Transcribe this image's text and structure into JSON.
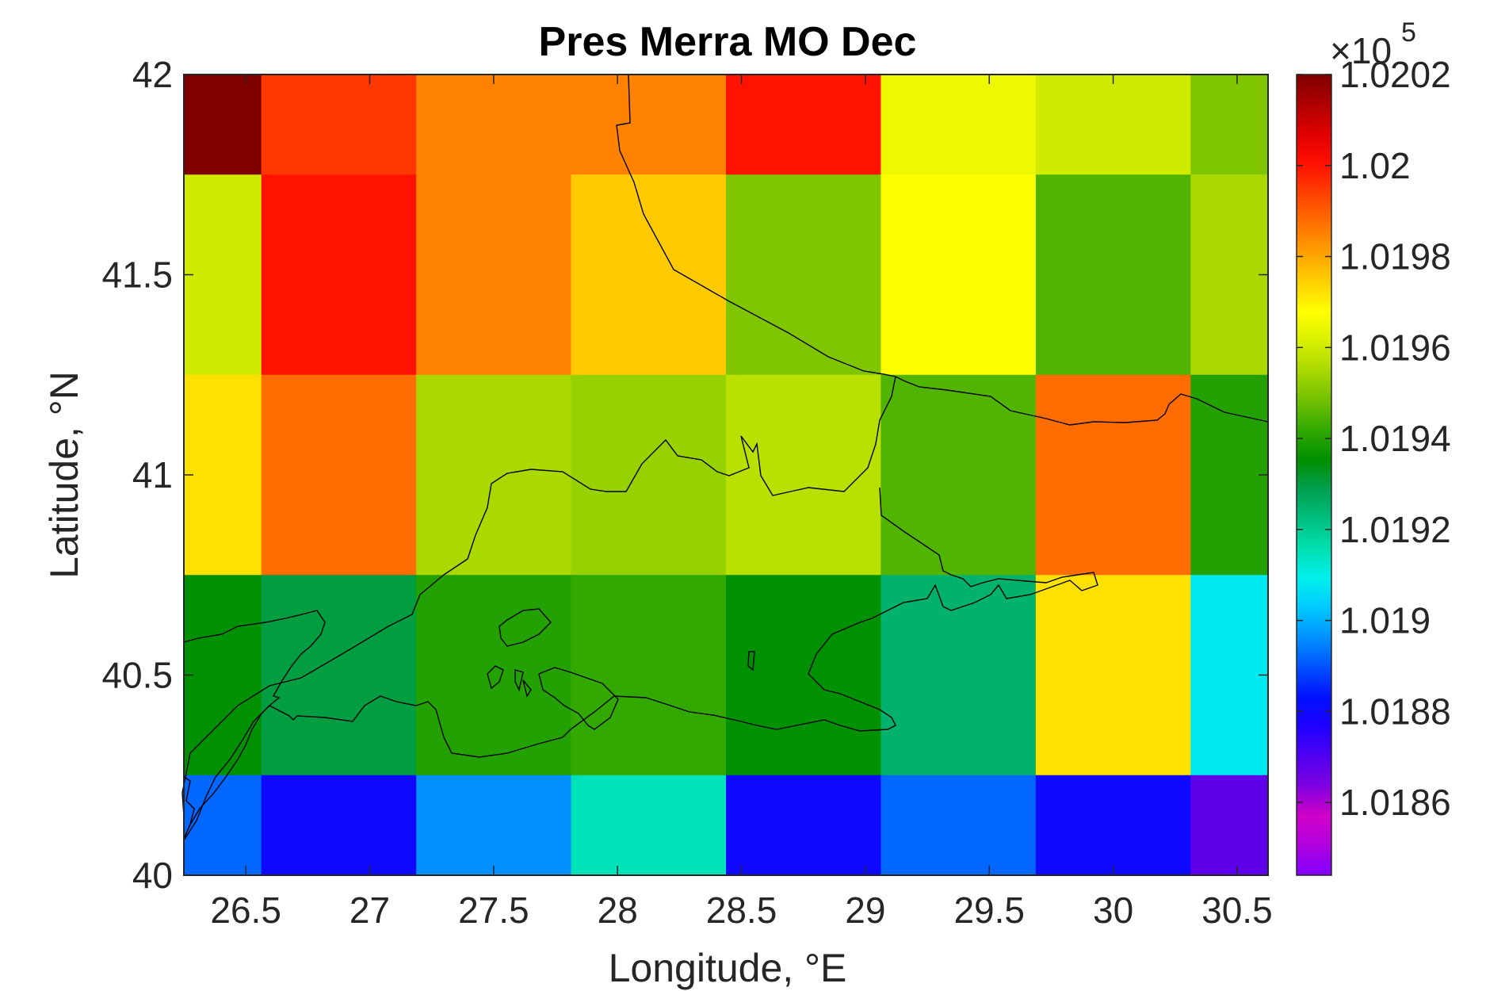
{
  "chart_data": {
    "type": "heatmap",
    "title": "Pres Merra MO Dec",
    "xlabel": "Longitude, °E",
    "ylabel": "Latitude, °N",
    "xlim": [
      26.25,
      30.625
    ],
    "ylim": [
      40,
      42
    ],
    "xticks": [
      26.5,
      27,
      27.5,
      28,
      28.5,
      29,
      29.5,
      30,
      30.5
    ],
    "xtick_labels": [
      "26.5",
      "27",
      "27.5",
      "28",
      "28.5",
      "29",
      "29.5",
      "30",
      "30.5"
    ],
    "yticks": [
      40,
      40.5,
      41,
      41.5,
      42
    ],
    "ytick_labels": [
      "40",
      "40.5",
      "41",
      "41.5",
      "42"
    ],
    "x_cell_edges": [
      26.25,
      26.5625,
      27.1875,
      27.8125,
      28.4375,
      29.0625,
      29.6875,
      30.3125,
      30.625
    ],
    "y_cell_edges": [
      42,
      41.75,
      41.25,
      40.75,
      40.25,
      40
    ],
    "z_multiplier_label": "×10",
    "z_multiplier_exponent": "5",
    "values": [
      [
        1.0202,
        1.01995,
        1.01985,
        1.01985,
        1.02,
        1.01965,
        1.0196,
        1.0195
      ],
      [
        1.0196,
        1.02,
        1.01985,
        1.01975,
        1.0195,
        1.01968,
        1.01945,
        1.01955
      ],
      [
        1.01972,
        1.01988,
        1.01955,
        1.01953,
        1.01957,
        1.01945,
        1.01988,
        1.0194
      ],
      [
        1.01935,
        1.0193,
        1.0194,
        1.01942,
        1.01935,
        1.01925,
        1.01972,
        1.01908
      ],
      [
        1.01892,
        1.0188,
        1.01896,
        1.01915,
        1.0188,
        1.01892,
        1.0188,
        1.01868
      ]
    ],
    "colorbar": {
      "range": [
        1.01844,
        1.0202
      ],
      "ticks": [
        1.0186,
        1.0188,
        1.019,
        1.0192,
        1.0194,
        1.0196,
        1.0198,
        1.02,
        1.0202
      ],
      "tick_labels": [
        "1.0186",
        "1.0188",
        "1.019",
        "1.0192",
        "1.0194",
        "1.0196",
        "1.0198",
        "1.02",
        "1.0202"
      ],
      "colormap": [
        "#7f00ff",
        "#b000e0",
        "#d000c8",
        "#8000e0",
        "#5000f0",
        "#2000ff",
        "#0010ff",
        "#0050ff",
        "#0090ff",
        "#00c8ff",
        "#00f0ee",
        "#00e0b0",
        "#00c080",
        "#00a050",
        "#009000",
        "#30a800",
        "#70c000",
        "#a8d800",
        "#d8f000",
        "#ffff00",
        "#ffd000",
        "#ffa000",
        "#ff7000",
        "#ff4000",
        "#ff1000",
        "#e00000",
        "#b00000",
        "#800000"
      ]
    },
    "coastline_color": "#000000",
    "grid": false
  }
}
